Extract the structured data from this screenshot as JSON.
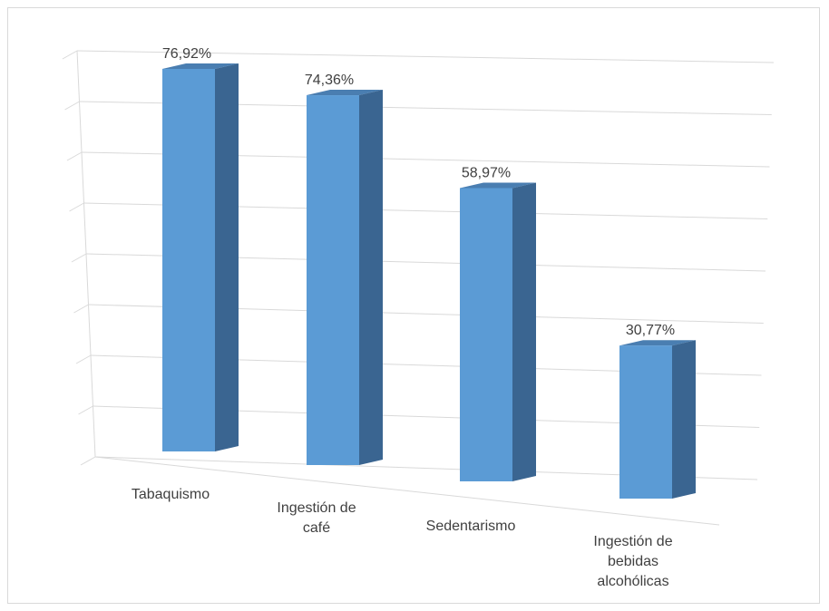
{
  "chart_data": {
    "type": "bar",
    "variant": "3d-column",
    "categories": [
      "Tabaquismo",
      "Ingestión de café",
      "Sedentarismo",
      "Ingestión de bebidas alcohólicas"
    ],
    "category_lines": [
      [
        "Tabaquismo"
      ],
      [
        "Ingestión  de",
        "café"
      ],
      [
        "Sedentarismo"
      ],
      [
        "Ingestión de",
        "bebidas",
        "alcohólicas"
      ]
    ],
    "values": [
      76.92,
      74.36,
      58.97,
      30.77
    ],
    "data_labels": [
      "76,92%",
      "74,36%",
      "58,97%",
      "30,77%"
    ],
    "unit": "%",
    "ylim": [
      0,
      80
    ],
    "grid": true,
    "legend": "none",
    "colors": {
      "front": "#5b9bd5",
      "side": "#3a6591",
      "top": "#4a7eb1",
      "grid": "#d9d9d9",
      "text": "#404040"
    }
  }
}
